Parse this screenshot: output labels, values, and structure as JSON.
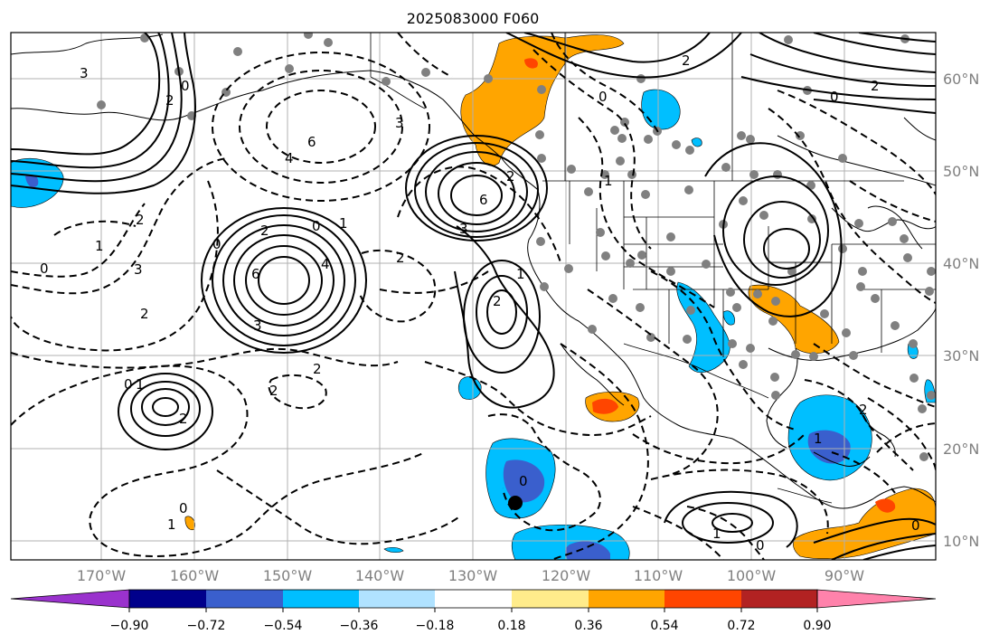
{
  "title": "2025083000 F060",
  "lon_labels": [
    "170°W",
    "160°W",
    "150°W",
    "140°W",
    "130°W",
    "120°W",
    "110°W",
    "100°W",
    "90°W"
  ],
  "lat_labels": [
    "60°N",
    "50°N",
    "40°N",
    "30°N",
    "20°N",
    "10°N"
  ],
  "colorbar": {
    "tick_labels": [
      "−0.90",
      "−0.72",
      "−0.54",
      "−0.36",
      "−0.18",
      "0.18",
      "0.36",
      "0.54",
      "0.72",
      "0.90"
    ],
    "colors": [
      "#9a32cd",
      "#00008b",
      "#3a5fcd",
      "#00bfff",
      "#b0e2ff",
      "#ffffff",
      "#ffec8b",
      "#ffa500",
      "#ff4500",
      "#b22222",
      "#ff82ab"
    ]
  },
  "contour_labels": [
    "3",
    "0",
    "2",
    "6",
    "4",
    "2",
    "0",
    "1",
    "2",
    "3",
    "6",
    "3",
    "1",
    "0",
    "2",
    "4",
    "6",
    "3",
    "2",
    "1",
    "2",
    "0",
    "3",
    "2",
    "2",
    "0",
    "1",
    "2",
    "2",
    "0",
    "1",
    "0",
    "2",
    "1",
    "0",
    "0",
    "1",
    "0",
    "2",
    "1",
    "0",
    "2"
  ]
}
